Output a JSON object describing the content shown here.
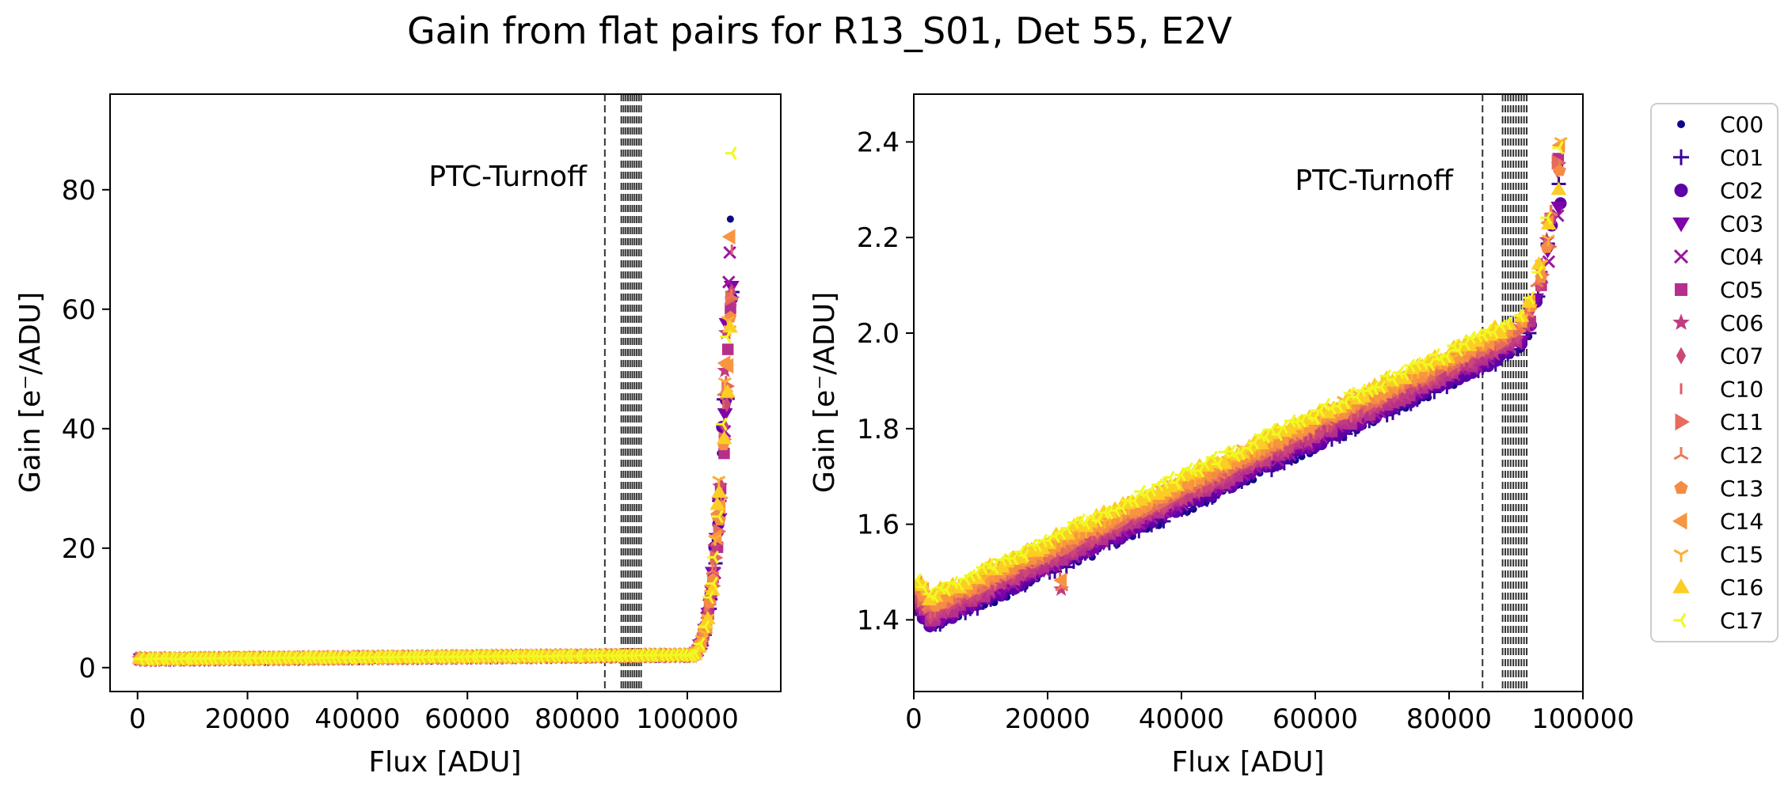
{
  "figure": {
    "title": "Gain from flat pairs for R13_S01, Det 55, E2V"
  },
  "legend": {
    "placement": "right",
    "entries": [
      {
        "label": "C00",
        "color": "#0d0887",
        "marker": "dot"
      },
      {
        "label": "C01",
        "color": "#3a049a",
        "marker": "plus"
      },
      {
        "label": "C02",
        "color": "#5c01a6",
        "marker": "circle"
      },
      {
        "label": "C03",
        "color": "#7e03a8",
        "marker": "triangle-down"
      },
      {
        "label": "C04",
        "color": "#9c179e",
        "marker": "x"
      },
      {
        "label": "C05",
        "color": "#b52f8c",
        "marker": "square"
      },
      {
        "label": "C06",
        "color": "#c23c81",
        "marker": "star"
      },
      {
        "label": "C07",
        "color": "#cc4778",
        "marker": "thin-diamond"
      },
      {
        "label": "C10",
        "color": "#de5f65",
        "marker": "vline"
      },
      {
        "label": "C11",
        "color": "#e56b5d",
        "marker": "triangle-right"
      },
      {
        "label": "C12",
        "color": "#ed7953",
        "marker": "tri-down"
      },
      {
        "label": "C13",
        "color": "#f58c46",
        "marker": "pentagon"
      },
      {
        "label": "C14",
        "color": "#f89540",
        "marker": "triangle-left"
      },
      {
        "label": "C15",
        "color": "#fdaf31",
        "marker": "tri-up"
      },
      {
        "label": "C16",
        "color": "#fcce25",
        "marker": "triangle-up"
      },
      {
        "label": "C17",
        "color": "#f0f921",
        "marker": "tri-right"
      }
    ]
  },
  "chart_data": [
    {
      "type": "scatter",
      "xlabel": "Flux [ADU]",
      "ylabel": "Gain [e⁻/ADU]",
      "xlim": [
        -5000,
        117000
      ],
      "ylim": [
        -4,
        96
      ],
      "xticks": [
        0,
        20000,
        40000,
        60000,
        80000,
        100000
      ],
      "yticks": [
        0,
        20,
        40,
        60,
        80
      ],
      "annotation": "PTC-Turnoff",
      "turnoff_lines": [
        85000,
        88000,
        88400,
        88800,
        89200,
        89600,
        90000,
        90400,
        90800,
        91200,
        91600
      ],
      "grid": false,
      "series_shape": "flat near 1.4-2.1 gain up to ~100000 ADU, then rising steeply to ~90 at ~108000 ADU"
    },
    {
      "type": "scatter",
      "xlabel": "Flux [ADU]",
      "ylabel": "Gain [e⁻/ADU]",
      "xlim": [
        0,
        100000
      ],
      "ylim": [
        1.25,
        2.5
      ],
      "xticks": [
        0,
        20000,
        40000,
        60000,
        80000,
        100000
      ],
      "yticks": [
        1.4,
        1.6,
        1.8,
        2.0,
        2.2,
        2.4
      ],
      "annotation": "PTC-Turnoff",
      "turnoff_lines": [
        85000,
        88000,
        88400,
        88800,
        89200,
        89600,
        90000,
        90400,
        90800,
        91200,
        91600
      ],
      "grid": false,
      "series_shape": "gain rises approximately linearly from ~1.40-1.47 at low flux to ~2.0-2.1 near 88000 ADU, then upturns to ~2.45 at ~97000 ADU"
    }
  ]
}
